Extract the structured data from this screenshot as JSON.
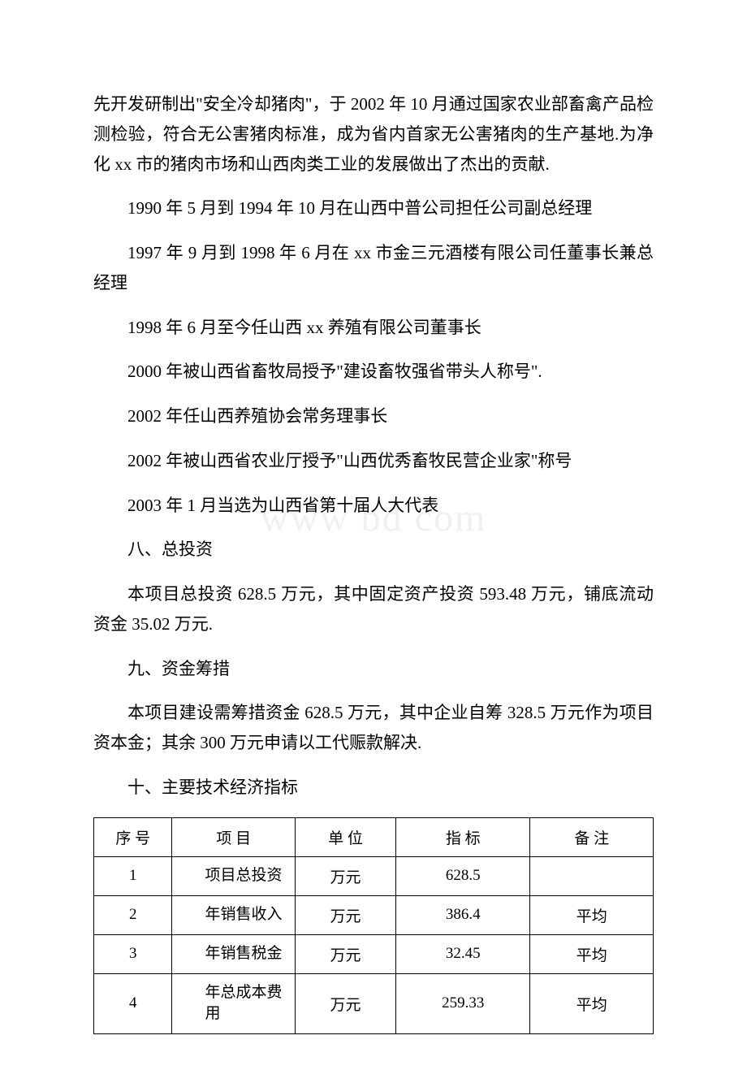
{
  "watermark": "www bd    com",
  "paragraphs": {
    "p1": "先开发研制出\"安全冷却猪肉\"，于 2002 年 10 月通过国家农业部畜禽产品检测检验，符合无公害猪肉标准，成为省内首家无公害猪肉的生产基地.为净化 xx 市的猪肉市场和山西肉类工业的发展做出了杰出的贡献.",
    "p2": "1990 年 5 月到 1994 年 10 月在山西中普公司担任公司副总经理",
    "p3": "1997 年 9 月到 1998 年 6 月在 xx 市金三元酒楼有限公司任董事长兼总经理",
    "p4": "1998 年 6 月至今任山西 xx 养殖有限公司董事长",
    "p5": "2000 年被山西省畜牧局授予\"建设畜牧强省带头人称号\".",
    "p6": "2002 年任山西养殖协会常务理事长",
    "p7": "2002 年被山西省农业厅授予\"山西优秀畜牧民营企业家\"称号",
    "p8": "2003 年 1 月当选为山西省第十届人大代表",
    "h8": "八、总投资",
    "p9": "本项目总投资 628.5 万元，其中固定资产投资 593.48 万元，铺底流动资金 35.02 万元.",
    "h9": "九、资金筹措",
    "p10": "本项目建设需筹措资金 628.5 万元，其中企业自筹 328.5 万元作为项目资本金；其余 300 万元申请以工代赈款解决.",
    "h10": "十、主要技术经济指标"
  },
  "table": {
    "headers": {
      "seq": "序 号",
      "item": "项 目",
      "unit": "单 位",
      "val": "指 标",
      "note": "备 注"
    },
    "rows": [
      {
        "seq": "1",
        "item": "项目总投资",
        "unit": "万元",
        "val": "628.5",
        "note": ""
      },
      {
        "seq": "2",
        "item": "年销售收入",
        "unit": "万元",
        "val": "386.4",
        "note": "平均"
      },
      {
        "seq": "3",
        "item": "年销售税金",
        "unit": "万元",
        "val": "32.45",
        "note": "平均"
      },
      {
        "seq": "4",
        "item": "年总成本费用",
        "unit": "万元",
        "val": "259.33",
        "note": "平均"
      }
    ]
  }
}
